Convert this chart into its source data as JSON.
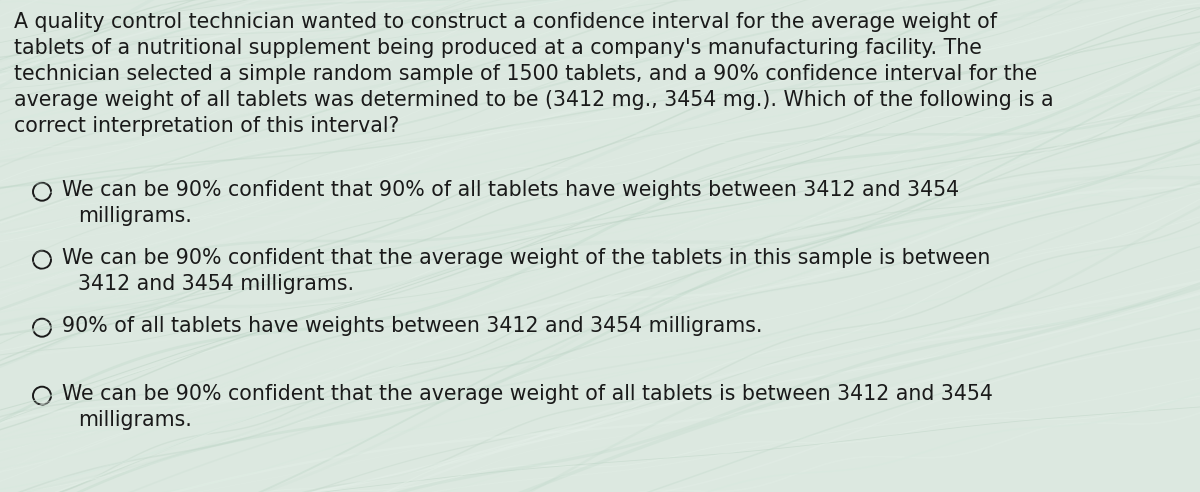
{
  "background_color": "#dce8e0",
  "text_color": "#1a1a1a",
  "para_lines": [
    "A quality control technician wanted to construct a confidence interval for the average weight of",
    "tablets of a nutritional supplement being produced at a company's manufacturing facility. The",
    "technician selected a simple random sample of 1500 tablets, and a 90% confidence interval for the",
    "average weight of all tablets was determined to be (3412 mg., 3454 mg.). Which of the following is a",
    "correct interpretation of this interval?"
  ],
  "options": [
    {
      "line1": "We can be 90% confident that 90% of all tablets have weights between 3412 and 3454",
      "line2": "milligrams."
    },
    {
      "line1": "We can be 90% confident that the average weight of the tablets in this sample is between",
      "line2": "3412 and 3454 milligrams."
    },
    {
      "line1": "90% of all tablets have weights between 3412 and 3454 milligrams.",
      "line2": null
    },
    {
      "line1": "We can be 90% confident that the average weight of all tablets is between 3412 and 3454",
      "line2": "milligrams."
    }
  ],
  "para_fontsize": 14.8,
  "option_fontsize": 14.8,
  "figsize": [
    12.0,
    4.92
  ]
}
